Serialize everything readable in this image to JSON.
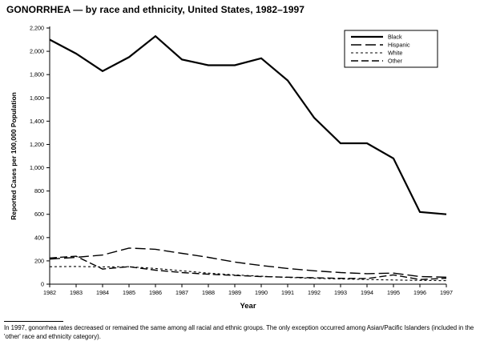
{
  "title": "GONORRHEA — by race and ethnicity, United States, 1982–1997",
  "footnote": "In 1997, gonorrhea rates decreased or remained the same among all racial and ethnic groups. The only exception occurred among Asian/Pacific Islanders (included in the 'other' race and ethnicity category).",
  "chart_data": {
    "type": "line",
    "title": "GONORRHEA — by race and ethnicity, United States, 1982–1997",
    "xlabel": "Year",
    "ylabel": "Reported Cases per 100,000 Population",
    "x": [
      1982,
      1983,
      1984,
      1985,
      1986,
      1987,
      1988,
      1989,
      1990,
      1991,
      1992,
      1993,
      1994,
      1995,
      1996,
      1997
    ],
    "ylim": [
      0,
      2200
    ],
    "ytick_step": 200,
    "grid": false,
    "legend_position": "top-right",
    "line_color": "#000000",
    "series": [
      {
        "name": "Black",
        "dash": "solid",
        "width": 2.2,
        "values": [
          2100,
          1980,
          1830,
          1950,
          2130,
          1930,
          1880,
          1880,
          1940,
          1750,
          1430,
          1210,
          1210,
          1080,
          620,
          600
        ]
      },
      {
        "name": "Hispanic",
        "dash": "long-dash",
        "width": 1.4,
        "values": [
          215,
          230,
          250,
          310,
          300,
          265,
          230,
          190,
          160,
          135,
          115,
          100,
          90,
          95,
          65,
          60
        ]
      },
      {
        "name": "White",
        "dash": "short-dash",
        "width": 1.1,
        "values": [
          150,
          152,
          148,
          150,
          135,
          115,
          95,
          80,
          68,
          58,
          50,
          45,
          40,
          36,
          32,
          30
        ]
      },
      {
        "name": "Other",
        "dash": "dash-dot",
        "width": 1.4,
        "values": [
          225,
          240,
          130,
          150,
          120,
          100,
          85,
          75,
          65,
          60,
          55,
          50,
          48,
          80,
          40,
          50
        ]
      }
    ]
  }
}
